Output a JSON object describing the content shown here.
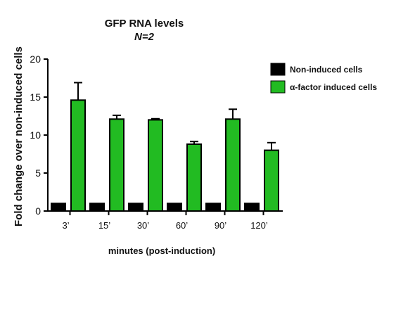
{
  "chart_data": {
    "type": "bar",
    "title": "GFP RNA levels",
    "subtitle": "N=2",
    "xlabel": "minutes (post-induction)",
    "ylabel": "Fold change over non-induced cells",
    "categories": [
      "3’",
      "15’",
      "30’",
      "60’",
      "90’",
      "120’"
    ],
    "ylim": [
      0,
      20
    ],
    "yticks": [
      0,
      5,
      10,
      15,
      20
    ],
    "series": [
      {
        "name": "Non-induced cells",
        "color": "#000000",
        "values": [
          1,
          1,
          1,
          1,
          1,
          1
        ],
        "errors": [
          0,
          0,
          0,
          0,
          0,
          0
        ]
      },
      {
        "name": "α-factor induced cells",
        "color": "#22bb22",
        "values": [
          14.6,
          12.1,
          12.0,
          8.8,
          12.1,
          8.0
        ],
        "errors": [
          2.3,
          0.5,
          0.15,
          0.35,
          1.3,
          1.0
        ]
      }
    ],
    "legend_position": "top-right",
    "grid": false
  }
}
